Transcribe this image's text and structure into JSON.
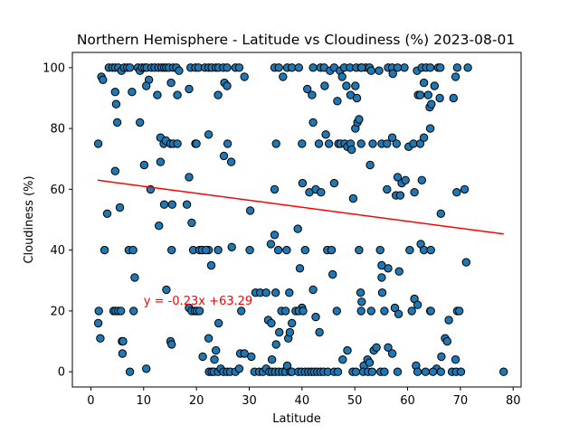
{
  "chart_data": {
    "type": "scatter",
    "title": "Northern Hemisphere - Latitude vs Cloudiness (%) 2023-08-01",
    "xlabel": "Latitude",
    "ylabel": "Cloudiness (%)",
    "xlim": [
      -3.5,
      81.5
    ],
    "ylim": [
      -5,
      105
    ],
    "xticks": [
      0,
      10,
      20,
      30,
      40,
      50,
      60,
      70,
      80
    ],
    "yticks": [
      0,
      20,
      40,
      60,
      80,
      100
    ],
    "grid": false,
    "marker_color": "#1f77b4",
    "marker_edge": "#000000",
    "regression": {
      "slope": -0.23,
      "intercept": 63.29,
      "x_range": [
        1.3,
        78.2
      ],
      "color": "#ff0000"
    },
    "annotation": {
      "text": "y = -0.23x +63.29",
      "x": 10,
      "y": 22,
      "color": "#ff0000"
    },
    "points": [
      [
        2.0,
        97
      ],
      [
        2.3,
        96
      ],
      [
        3.4,
        100
      ],
      [
        4.1,
        100
      ],
      [
        4.6,
        100
      ],
      [
        5.2,
        100
      ],
      [
        5.8,
        99
      ],
      [
        6.3,
        100
      ],
      [
        6.9,
        100
      ],
      [
        7.4,
        100
      ],
      [
        8.9,
        100
      ],
      [
        9.3,
        99
      ],
      [
        9.7,
        100
      ],
      [
        10.2,
        100
      ],
      [
        10.6,
        100
      ],
      [
        11.0,
        96
      ],
      [
        11.5,
        100
      ],
      [
        12.1,
        100
      ],
      [
        12.8,
        100
      ],
      [
        13.4,
        100
      ],
      [
        13.9,
        100
      ],
      [
        14.3,
        100
      ],
      [
        14.8,
        100
      ],
      [
        15.6,
        100
      ],
      [
        16.2,
        100
      ],
      [
        16.7,
        99
      ],
      [
        18.9,
        100
      ],
      [
        19.8,
        100
      ],
      [
        20.4,
        100
      ],
      [
        21.6,
        100
      ],
      [
        22.3,
        100
      ],
      [
        22.9,
        100
      ],
      [
        23.7,
        100
      ],
      [
        24.2,
        100
      ],
      [
        25.1,
        100
      ],
      [
        25.8,
        100
      ],
      [
        27.4,
        100
      ],
      [
        28.1,
        100
      ],
      [
        34.8,
        100
      ],
      [
        35.6,
        100
      ],
      [
        37.2,
        100
      ],
      [
        38.1,
        100
      ],
      [
        39.4,
        100
      ],
      [
        42.1,
        100
      ],
      [
        43.5,
        100
      ],
      [
        44.2,
        100
      ],
      [
        45.3,
        99
      ],
      [
        46.1,
        100
      ],
      [
        47.2,
        99
      ],
      [
        48.0,
        100
      ],
      [
        49.1,
        100
      ],
      [
        50.3,
        100
      ],
      [
        51.2,
        100
      ],
      [
        52.1,
        100
      ],
      [
        52.8,
        100
      ],
      [
        56.3,
        100
      ],
      [
        57.1,
        100
      ],
      [
        59.4,
        100
      ],
      [
        61.8,
        99
      ],
      [
        62.7,
        100
      ],
      [
        63.5,
        100
      ],
      [
        64.3,
        100
      ],
      [
        65.8,
        100
      ],
      [
        66.2,
        100
      ],
      [
        69.4,
        100
      ],
      [
        71.4,
        100
      ],
      [
        4.6,
        92
      ],
      [
        4.8,
        88
      ],
      [
        7.8,
        92
      ],
      [
        10.5,
        94
      ],
      [
        12.6,
        91
      ],
      [
        15.2,
        95
      ],
      [
        16.4,
        91
      ],
      [
        18.6,
        93
      ],
      [
        24.1,
        91
      ],
      [
        25.3,
        95
      ],
      [
        25.8,
        94
      ],
      [
        29.1,
        97
      ],
      [
        36.4,
        97
      ],
      [
        41.0,
        93
      ],
      [
        41.9,
        91
      ],
      [
        44.3,
        94
      ],
      [
        46.7,
        89
      ],
      [
        47.6,
        97
      ],
      [
        48.4,
        94
      ],
      [
        49.2,
        91
      ],
      [
        50.1,
        94
      ],
      [
        50.4,
        90
      ],
      [
        51.3,
        100
      ],
      [
        53.1,
        99
      ],
      [
        54.6,
        99
      ],
      [
        57.2,
        98
      ],
      [
        58.1,
        100
      ],
      [
        62.0,
        91
      ],
      [
        62.4,
        91
      ],
      [
        63.1,
        95
      ],
      [
        63.9,
        91
      ],
      [
        64.2,
        87
      ],
      [
        64.5,
        88
      ],
      [
        65.1,
        94
      ],
      [
        66.1,
        90
      ],
      [
        68.7,
        90
      ],
      [
        69.1,
        97
      ],
      [
        5.0,
        82
      ],
      [
        9.3,
        82
      ],
      [
        13.2,
        77
      ],
      [
        13.8,
        75
      ],
      [
        14.2,
        76
      ],
      [
        15.1,
        75
      ],
      [
        15.6,
        75
      ],
      [
        16.4,
        75
      ],
      [
        19.8,
        75
      ],
      [
        20.0,
        75
      ],
      [
        22.3,
        78
      ],
      [
        25.9,
        75
      ],
      [
        35.1,
        75
      ],
      [
        40.0,
        75
      ],
      [
        42.1,
        82
      ],
      [
        43.2,
        75
      ],
      [
        44.5,
        78
      ],
      [
        45.1,
        75
      ],
      [
        46.9,
        75
      ],
      [
        47.3,
        75
      ],
      [
        48.1,
        75
      ],
      [
        48.6,
        74
      ],
      [
        49.2,
        75
      ],
      [
        49.4,
        73
      ],
      [
        50.1,
        80
      ],
      [
        50.5,
        82
      ],
      [
        50.8,
        83
      ],
      [
        51.2,
        75
      ],
      [
        52.9,
        68
      ],
      [
        53.4,
        75
      ],
      [
        55.1,
        75
      ],
      [
        56.1,
        75
      ],
      [
        57.1,
        77
      ],
      [
        57.9,
        75
      ],
      [
        60.2,
        74
      ],
      [
        61.1,
        75
      ],
      [
        62.4,
        75
      ],
      [
        63.1,
        77
      ],
      [
        64.3,
        80
      ],
      [
        1.4,
        75
      ],
      [
        4.6,
        66
      ],
      [
        10.1,
        68
      ],
      [
        11.3,
        60
      ],
      [
        13.2,
        69
      ],
      [
        18.6,
        64
      ],
      [
        25.2,
        71
      ],
      [
        26.6,
        69
      ],
      [
        34.8,
        60
      ],
      [
        40.1,
        62
      ],
      [
        41.4,
        59
      ],
      [
        42.6,
        60
      ],
      [
        43.6,
        59
      ],
      [
        46.1,
        62
      ],
      [
        49.7,
        57
      ],
      [
        56.1,
        60
      ],
      [
        57.8,
        58
      ],
      [
        58.1,
        64
      ],
      [
        58.6,
        58
      ],
      [
        58.9,
        62
      ],
      [
        59.6,
        63
      ],
      [
        61.3,
        59
      ],
      [
        62.7,
        63
      ],
      [
        66.3,
        52
      ],
      [
        69.3,
        59
      ],
      [
        70.8,
        60
      ],
      [
        3.1,
        52
      ],
      [
        5.5,
        54
      ],
      [
        12.9,
        48
      ],
      [
        13.9,
        55
      ],
      [
        15.4,
        55
      ],
      [
        18.2,
        55
      ],
      [
        19.1,
        49
      ],
      [
        22.3,
        40
      ],
      [
        22.8,
        35
      ],
      [
        24.1,
        40
      ],
      [
        26.7,
        41
      ],
      [
        30.2,
        53
      ],
      [
        34.1,
        42
      ],
      [
        34.8,
        45
      ],
      [
        35.5,
        40
      ],
      [
        37.1,
        40
      ],
      [
        39.2,
        47
      ],
      [
        39.6,
        34
      ],
      [
        44.8,
        40
      ],
      [
        45.6,
        40
      ],
      [
        50.8,
        40
      ],
      [
        54.8,
        40
      ],
      [
        56.3,
        34
      ],
      [
        58.4,
        33
      ],
      [
        62.5,
        42
      ],
      [
        63.1,
        40
      ],
      [
        64.4,
        40
      ],
      [
        71.1,
        36
      ],
      [
        2.6,
        40
      ],
      [
        7.2,
        40
      ],
      [
        8.0,
        40
      ],
      [
        8.3,
        31
      ],
      [
        15.3,
        40
      ],
      [
        19.4,
        40
      ],
      [
        20.6,
        40
      ],
      [
        21.1,
        40
      ],
      [
        30.1,
        40
      ],
      [
        31.2,
        26
      ],
      [
        32.1,
        26
      ],
      [
        33.2,
        26
      ],
      [
        35.0,
        26
      ],
      [
        37.6,
        26
      ],
      [
        40.0,
        21
      ],
      [
        42.1,
        27
      ],
      [
        51.1,
        26
      ],
      [
        51.3,
        23
      ],
      [
        55.2,
        26
      ],
      [
        61.3,
        24
      ],
      [
        61.9,
        22
      ],
      [
        1.5,
        20
      ],
      [
        1.4,
        16
      ],
      [
        1.8,
        11
      ],
      [
        4.3,
        20
      ],
      [
        4.7,
        20
      ],
      [
        5.2,
        20
      ],
      [
        5.7,
        20
      ],
      [
        5.9,
        10
      ],
      [
        6.1,
        10
      ],
      [
        6.0,
        6
      ],
      [
        8.1,
        20
      ],
      [
        10.5,
        1
      ],
      [
        14.3,
        27
      ],
      [
        15.1,
        10
      ],
      [
        15.3,
        9
      ],
      [
        18.6,
        21
      ],
      [
        19.1,
        20
      ],
      [
        19.7,
        20
      ],
      [
        20.1,
        20
      ],
      [
        20.6,
        20
      ],
      [
        21.8,
        40
      ],
      [
        22.3,
        11
      ],
      [
        23.4,
        4
      ],
      [
        23.7,
        7
      ],
      [
        24.2,
        16
      ],
      [
        28.5,
        20
      ],
      [
        28.3,
        6
      ],
      [
        29.1,
        6
      ],
      [
        30.4,
        5
      ],
      [
        33.6,
        17
      ],
      [
        34.2,
        16
      ],
      [
        34.3,
        4
      ],
      [
        35.1,
        9
      ],
      [
        35.7,
        13
      ],
      [
        36.1,
        20
      ],
      [
        36.9,
        20
      ],
      [
        37.4,
        11
      ],
      [
        37.7,
        13
      ],
      [
        38.1,
        16
      ],
      [
        38.8,
        20
      ],
      [
        39.4,
        20
      ],
      [
        40.2,
        20
      ],
      [
        42.6,
        18
      ],
      [
        43.3,
        13
      ],
      [
        45.8,
        32
      ],
      [
        46.6,
        20
      ],
      [
        47.7,
        4
      ],
      [
        48.6,
        7
      ],
      [
        51.2,
        20
      ],
      [
        51.7,
        2
      ],
      [
        52.4,
        4
      ],
      [
        52.8,
        3
      ],
      [
        53.1,
        20
      ],
      [
        53.6,
        7
      ],
      [
        54.1,
        8
      ],
      [
        55.1,
        31
      ],
      [
        55.6,
        20
      ],
      [
        56.3,
        8
      ],
      [
        57.1,
        6
      ],
      [
        57.6,
        21
      ],
      [
        58.3,
        19
      ],
      [
        60.8,
        20
      ],
      [
        61.6,
        2
      ],
      [
        64.3,
        20
      ],
      [
        64.4,
        20
      ],
      [
        65.5,
        1
      ],
      [
        66.4,
        5
      ],
      [
        67.1,
        11
      ],
      [
        67.5,
        10
      ],
      [
        67.8,
        17
      ],
      [
        69.1,
        4
      ],
      [
        69.4,
        20
      ],
      [
        69.8,
        20
      ],
      [
        7.4,
        0
      ],
      [
        21.2,
        5
      ],
      [
        22.4,
        0
      ],
      [
        22.9,
        0
      ],
      [
        23.3,
        0
      ],
      [
        24.1,
        0
      ],
      [
        24.6,
        1
      ],
      [
        25.1,
        0
      ],
      [
        25.8,
        0
      ],
      [
        26.4,
        0
      ],
      [
        27.4,
        0
      ],
      [
        28.1,
        1
      ],
      [
        31.0,
        0
      ],
      [
        31.9,
        0
      ],
      [
        32.6,
        0
      ],
      [
        33.2,
        1
      ],
      [
        33.8,
        0
      ],
      [
        34.3,
        0
      ],
      [
        34.9,
        0
      ],
      [
        35.6,
        0
      ],
      [
        36.3,
        0
      ],
      [
        36.9,
        0
      ],
      [
        37.2,
        2
      ],
      [
        37.8,
        0
      ],
      [
        38.1,
        0
      ],
      [
        39.3,
        0
      ],
      [
        39.9,
        0
      ],
      [
        40.6,
        0
      ],
      [
        41.2,
        0
      ],
      [
        41.8,
        0
      ],
      [
        42.3,
        0
      ],
      [
        42.9,
        0
      ],
      [
        43.5,
        0
      ],
      [
        44.1,
        0
      ],
      [
        44.9,
        0
      ],
      [
        46.1,
        0
      ],
      [
        46.8,
        0
      ],
      [
        49.6,
        0
      ],
      [
        50.2,
        0
      ],
      [
        51.6,
        0
      ],
      [
        52.5,
        0
      ],
      [
        53.3,
        0
      ],
      [
        54.9,
        0
      ],
      [
        55.6,
        0
      ],
      [
        58.1,
        0
      ],
      [
        61.9,
        0
      ],
      [
        63.4,
        0
      ],
      [
        64.8,
        0
      ],
      [
        66.3,
        0
      ],
      [
        68.4,
        0
      ],
      [
        69.2,
        0
      ],
      [
        70.1,
        0
      ],
      [
        78.2,
        0
      ],
      [
        55.1,
        35
      ],
      [
        60.4,
        40
      ],
      [
        40.6,
        40
      ]
    ]
  }
}
